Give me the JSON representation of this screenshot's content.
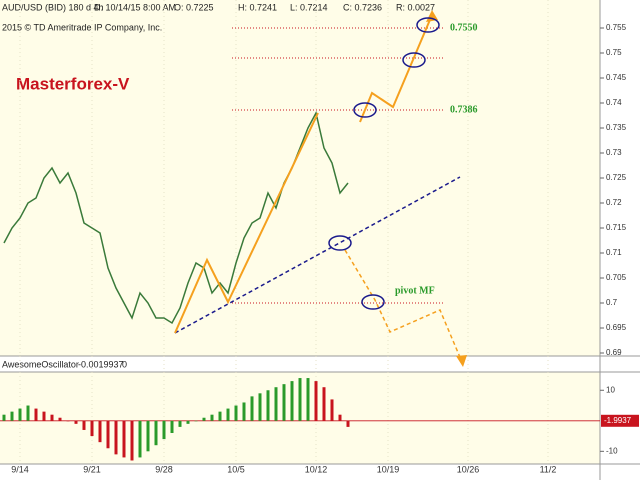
{
  "chart_data": {
    "type": "line",
    "title": "Masterforex-V",
    "header": [
      "AUD/USD (BID) 180 d 4h",
      "D: 10/14/15 8:00 AM",
      "O: 0.7225",
      "H: 0.7241",
      "L: 0.7214",
      "C: 0.7236",
      "R: 0.0027"
    ],
    "copyright": "2015 © TD Ameritrade IP Company, Inc.",
    "categories": [
      null,
      null,
      "9/14",
      null,
      null,
      null,
      null,
      null,
      null,
      null,
      null,
      "9/21",
      null,
      null,
      null,
      null,
      null,
      null,
      null,
      null,
      "9/28",
      null,
      null,
      null,
      null,
      null,
      null,
      null,
      null,
      "10/5",
      null,
      null,
      null,
      null,
      null,
      null,
      null,
      null,
      null,
      "10/12",
      null,
      null,
      null,
      null,
      null,
      null,
      null,
      null,
      "10/19",
      null,
      null,
      null,
      null,
      null,
      null,
      null,
      null,
      null,
      "10/26",
      null,
      null,
      null,
      null,
      null,
      null,
      null,
      null,
      null,
      "11/2",
      null,
      null,
      null,
      null,
      null,
      null
    ],
    "series": [
      {
        "name": "AUD/USD",
        "color": "#3a7a3a",
        "values": [
          0.712,
          0.715,
          0.717,
          0.72,
          0.721,
          0.725,
          0.727,
          0.724,
          0.726,
          0.722,
          0.716,
          0.715,
          0.714,
          0.707,
          0.703,
          0.7,
          0.697,
          0.702,
          0.7,
          0.697,
          0.697,
          0.696,
          0.699,
          0.704,
          0.708,
          0.707,
          0.702,
          0.704,
          0.702,
          0.708,
          0.713,
          0.716,
          0.717,
          0.722,
          0.719,
          0.724,
          0.727,
          0.731,
          0.735,
          0.738,
          0.731,
          0.728,
          0.722,
          0.724,
          null,
          null,
          null,
          null,
          null,
          null,
          null,
          null,
          null,
          null,
          null,
          null,
          null,
          null,
          null,
          null,
          null,
          null,
          null,
          null,
          null,
          null,
          null,
          null,
          null,
          null,
          null,
          null,
          null,
          null,
          null
        ]
      }
    ],
    "ylim": [
      0.6896,
      0.7606
    ],
    "yticks": [
      0.755,
      0.75,
      0.745,
      0.74,
      0.735,
      0.73,
      0.725,
      0.72,
      0.715,
      0.71,
      0.705,
      0.7,
      0.695,
      0.69
    ],
    "levels": [
      {
        "value": 0.755,
        "label": "0.7550"
      },
      {
        "value": 0.749
      },
      {
        "value": 0.7386,
        "label": "0.7386"
      },
      {
        "value": 0.7,
        "label": "pivot MF"
      }
    ],
    "oscillator": {
      "name": "AwesomeOscillator",
      "last": "-0.0019937",
      "zero_label": "0",
      "current_label": "-1.9937",
      "ylim": [
        -13.5,
        15
      ],
      "yticks": [
        10,
        -10
      ],
      "values": [
        2,
        3,
        4,
        5,
        4,
        3,
        2,
        1,
        0,
        -1,
        -3,
        -5,
        -7,
        -9,
        -11,
        -12,
        -13,
        -12,
        -10,
        -8,
        -6,
        -4,
        -2,
        -1,
        0,
        1,
        2,
        3,
        4,
        5,
        6,
        8,
        9,
        10,
        11,
        12,
        13,
        14,
        14,
        13,
        11,
        7,
        2,
        -2,
        null,
        null,
        null,
        null,
        null,
        null,
        null,
        null,
        null,
        null,
        null,
        null,
        null,
        null,
        null,
        null,
        null,
        null,
        null,
        null,
        null,
        null,
        null,
        null,
        null,
        null,
        null,
        null,
        null,
        null,
        null
      ]
    }
  }
}
